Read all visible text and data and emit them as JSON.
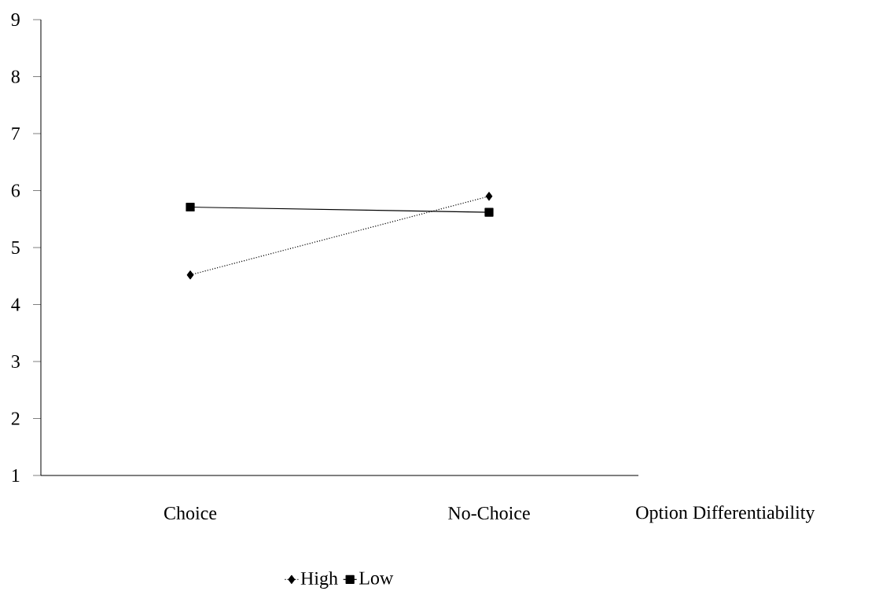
{
  "chart_data": {
    "type": "line",
    "xlabel": "Option Differentiability",
    "categories": [
      "Choice",
      "No-Choice"
    ],
    "series": [
      {
        "name": "High",
        "color": "#000000",
        "values": [
          4.52,
          5.9
        ],
        "marker": "diamond",
        "line_style": "dotted"
      },
      {
        "name": "Low",
        "color": "#000000",
        "values": [
          5.71,
          5.62
        ],
        "marker": "square",
        "line_style": "solid"
      }
    ],
    "ylim": [
      1,
      9
    ],
    "yticks": [
      1,
      2,
      3,
      4,
      5,
      6,
      7,
      8,
      9
    ],
    "legend": "bottom"
  }
}
